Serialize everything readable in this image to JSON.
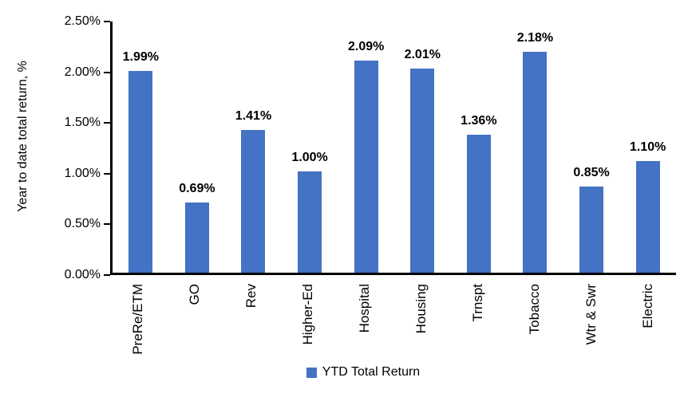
{
  "chart_data": {
    "type": "bar",
    "title": "",
    "ylabel": "Year to date total return, %",
    "xlabel": "",
    "ylim": [
      0,
      2.5
    ],
    "grid": false,
    "legend_position": "bottom-center",
    "bar_color": "#4472C4",
    "categories": [
      "PreRe/ETM",
      "GO",
      "Rev",
      "Higher-Ed",
      "Hospital",
      "Housing",
      "Trnspt",
      "Tobacco",
      "Wtr & Swr",
      "Electric"
    ],
    "values": [
      1.99,
      0.69,
      1.41,
      1.0,
      2.09,
      2.01,
      1.36,
      2.18,
      0.85,
      1.1
    ],
    "value_labels": [
      "1.99%",
      "0.69%",
      "1.41%",
      "1.00%",
      "2.09%",
      "2.01%",
      "1.36%",
      "2.18%",
      "0.85%",
      "1.10%"
    ],
    "yticks": [
      {
        "label": "0.00%",
        "value": 0
      },
      {
        "label": "0.50%",
        "value": 0.5
      },
      {
        "label": "1.00%",
        "value": 1
      },
      {
        "label": "1.50%",
        "value": 1.5
      },
      {
        "label": "2.00%",
        "value": 2
      },
      {
        "label": "2.50%",
        "value": 2.5
      }
    ],
    "legend": [
      {
        "label": "YTD Total Return",
        "color": "#4472C4"
      }
    ]
  }
}
